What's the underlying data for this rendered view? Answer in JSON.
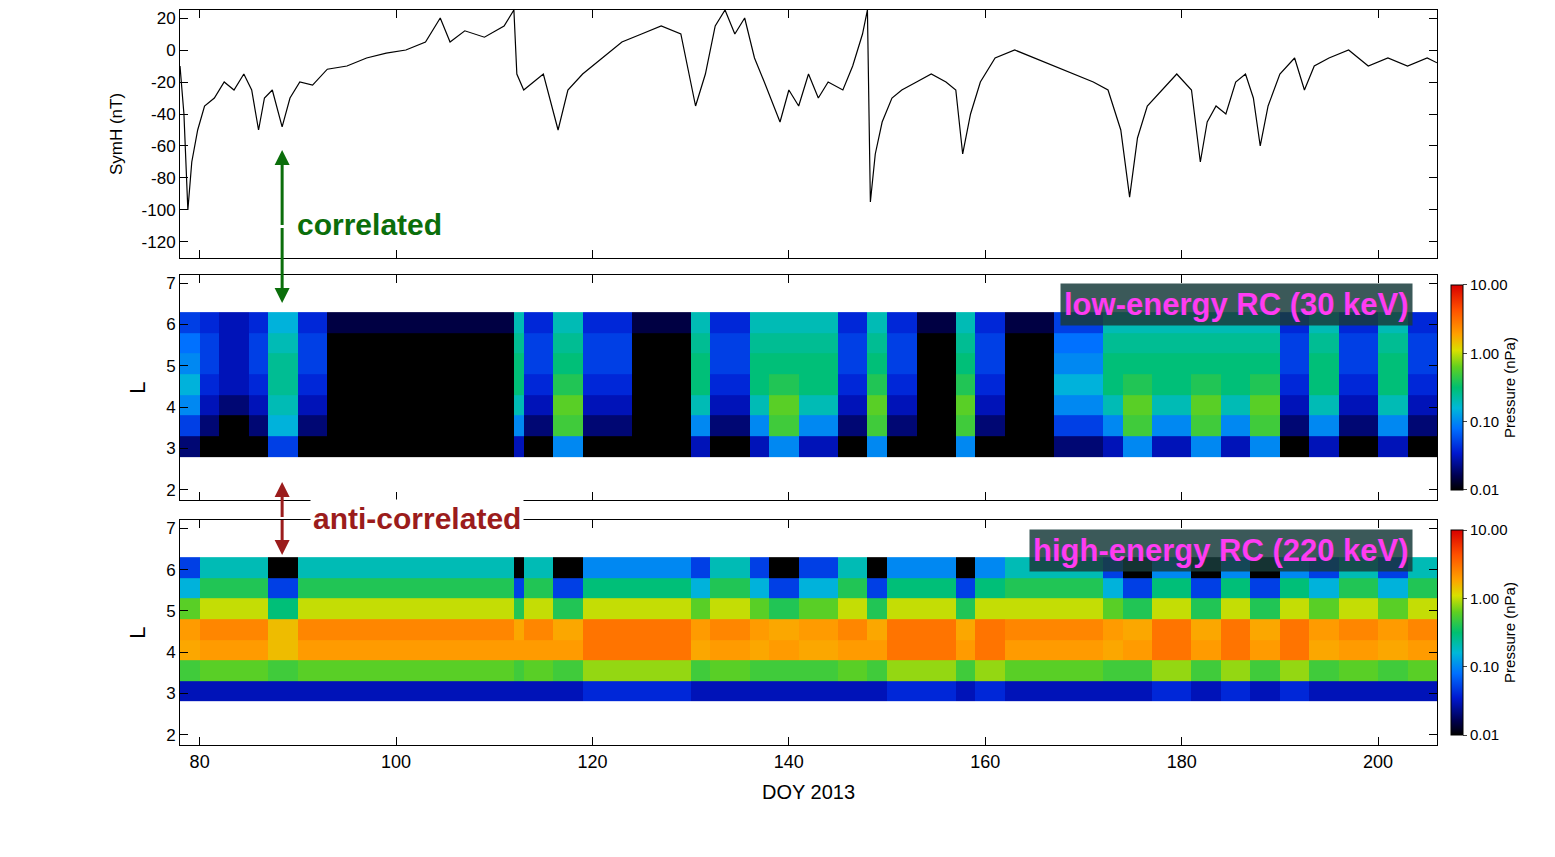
{
  "chart_data": [
    {
      "type": "line",
      "y_label": "SymH (nT)",
      "color": "#000000",
      "xlim": [
        78,
        206
      ],
      "xticks": [
        80,
        100,
        120,
        140,
        160,
        180,
        200
      ],
      "ylim": [
        -130,
        25
      ],
      "yticks": [
        20,
        0,
        -20,
        -40,
        -60,
        -80,
        -100,
        -120
      ],
      "tick_labels": "y",
      "x": [
        78.0,
        78.4,
        78.8,
        79.2,
        79.8,
        80.5,
        81.5,
        82.5,
        83.5,
        84.5,
        85.3,
        86.0,
        86.6,
        87.4,
        88.4,
        89.2,
        90.2,
        91.5,
        93,
        95,
        97,
        99,
        101,
        103,
        104.5,
        105.5,
        107,
        109,
        111,
        112.0,
        112.3,
        113,
        114,
        115,
        116.5,
        117.5,
        119,
        121,
        123,
        125,
        127,
        129,
        130.5,
        131.5,
        132.5,
        133.5,
        134.5,
        135.5,
        136.5,
        137.5,
        139.1,
        140,
        141,
        142,
        143,
        144,
        145.5,
        146.5,
        147.5,
        148.0,
        148.3,
        148.8,
        149.5,
        150.5,
        151.5,
        153,
        154.5,
        156,
        157.0,
        157.7,
        158.5,
        159.5,
        161,
        163,
        165,
        167,
        169,
        171,
        172.5,
        173.8,
        174.7,
        175.5,
        176.5,
        178,
        179.5,
        181,
        181.9,
        182.6,
        183.5,
        184.5,
        185.5,
        186.5,
        187.3,
        188.0,
        188.8,
        190,
        191.5,
        192.5,
        193.5,
        195,
        197,
        199,
        201,
        203,
        205,
        206
      ],
      "values": [
        -10,
        -40,
        -100,
        -70,
        -50,
        -35,
        -30,
        -20,
        -25,
        -15,
        -25,
        -50,
        -30,
        -25,
        -48,
        -30,
        -20,
        -22,
        -12,
        -10,
        -5,
        -2,
        0,
        5,
        20,
        5,
        12,
        8,
        15,
        25,
        -15,
        -25,
        -20,
        -15,
        -50,
        -25,
        -15,
        -5,
        5,
        10,
        15,
        10,
        -35,
        -15,
        15,
        25,
        10,
        20,
        -5,
        -20,
        -45,
        -25,
        -35,
        -15,
        -30,
        -20,
        -25,
        -10,
        10,
        25,
        -95,
        -65,
        -45,
        -30,
        -25,
        -20,
        -15,
        -20,
        -25,
        -65,
        -40,
        -20,
        -5,
        0,
        -5,
        -10,
        -15,
        -20,
        -25,
        -50,
        -92,
        -55,
        -35,
        -25,
        -15,
        -25,
        -70,
        -45,
        -35,
        -40,
        -20,
        -15,
        -30,
        -60,
        -35,
        -15,
        -5,
        -25,
        -10,
        -5,
        0,
        -10,
        -5,
        -10,
        -5,
        -8
      ],
      "annotations": [
        {
          "text": "correlated",
          "x": 88.4,
          "color": "#0b6e0b"
        }
      ]
    },
    {
      "type": "heatmap",
      "label": "low-energy RC (30 keV)",
      "y_label": "L",
      "log": true,
      "xlim": [
        78,
        206
      ],
      "xticks": [
        80,
        100,
        120,
        140,
        160,
        180,
        200
      ],
      "ylim": [
        1.75,
        7.2
      ],
      "yticks": [
        2,
        3,
        4,
        5,
        6,
        7
      ],
      "tick_labels": "y",
      "colorbar": {
        "title": "Pressure (nPa)",
        "range": [
          0.01,
          10
        ],
        "ticks": [
          {
            "value": 10,
            "label": "10.00"
          },
          {
            "value": 1,
            "label": "1.00"
          },
          {
            "value": 0.1,
            "label": "0.10"
          },
          {
            "value": 0.01,
            "label": "0.01"
          }
        ]
      },
      "x": [
        78,
        80,
        82,
        85,
        86,
        87,
        90,
        93,
        100,
        105,
        112,
        113,
        116,
        119,
        124,
        130,
        132,
        136,
        138,
        141,
        145,
        148,
        150,
        153,
        157,
        159,
        162,
        167,
        172,
        174,
        177,
        181,
        184,
        187,
        190,
        193,
        196,
        200,
        203,
        206
      ],
      "y": [
        2.8,
        3.3,
        3.8,
        4.3,
        4.8,
        5.3,
        5.8,
        6.3
      ],
      "pressure": [
        [
          0.02,
          0.05,
          0.1,
          0.15,
          0.1,
          0.08,
          0.05
        ],
        [
          0.01,
          0.02,
          0.03,
          0.04,
          0.05,
          0.05,
          0.04
        ],
        [
          0.01,
          0.01,
          0.02,
          0.03,
          0.03,
          0.03,
          0.03
        ],
        [
          0.01,
          0.02,
          0.03,
          0.04,
          0.05,
          0.05,
          0.04
        ],
        [
          0.01,
          0.02,
          0.03,
          0.04,
          0.05,
          0.05,
          0.04
        ],
        [
          0.05,
          0.15,
          0.2,
          0.25,
          0.25,
          0.2,
          0.15
        ],
        [
          0.01,
          0.02,
          0.03,
          0.04,
          0.05,
          0.05,
          0.04
        ],
        [
          0.01,
          0.01,
          0.01,
          0.01,
          0.01,
          0.01,
          0.015
        ],
        [
          0.01,
          0.01,
          0.01,
          0.01,
          0.01,
          0.01,
          0.015
        ],
        [
          0.01,
          0.01,
          0.01,
          0.01,
          0.01,
          0.01,
          0.015
        ],
        [
          0.03,
          0.1,
          0.2,
          0.3,
          0.3,
          0.25,
          0.2
        ],
        [
          0.01,
          0.02,
          0.03,
          0.04,
          0.05,
          0.05,
          0.04
        ],
        [
          0.1,
          0.5,
          0.6,
          0.4,
          0.3,
          0.25,
          0.2
        ],
        [
          0.01,
          0.02,
          0.03,
          0.04,
          0.05,
          0.05,
          0.04
        ],
        [
          0.01,
          0.01,
          0.01,
          0.01,
          0.01,
          0.01,
          0.015
        ],
        [
          0.03,
          0.1,
          0.2,
          0.3,
          0.3,
          0.25,
          0.2
        ],
        [
          0.01,
          0.02,
          0.03,
          0.04,
          0.05,
          0.05,
          0.04
        ],
        [
          0.03,
          0.1,
          0.2,
          0.3,
          0.3,
          0.25,
          0.2
        ],
        [
          0.1,
          0.5,
          0.6,
          0.4,
          0.3,
          0.25,
          0.2
        ],
        [
          0.03,
          0.1,
          0.2,
          0.3,
          0.3,
          0.25,
          0.2
        ],
        [
          0.01,
          0.02,
          0.03,
          0.04,
          0.05,
          0.05,
          0.04
        ],
        [
          0.1,
          0.5,
          0.6,
          0.4,
          0.3,
          0.25,
          0.2
        ],
        [
          0.01,
          0.02,
          0.03,
          0.04,
          0.05,
          0.05,
          0.04
        ],
        [
          0.01,
          0.01,
          0.01,
          0.01,
          0.01,
          0.01,
          0.015
        ],
        [
          0.1,
          0.5,
          0.6,
          0.4,
          0.3,
          0.25,
          0.2
        ],
        [
          0.01,
          0.02,
          0.03,
          0.04,
          0.05,
          0.05,
          0.04
        ],
        [
          0.01,
          0.01,
          0.01,
          0.01,
          0.01,
          0.01,
          0.015
        ],
        [
          0.02,
          0.05,
          0.1,
          0.15,
          0.1,
          0.08,
          0.05
        ],
        [
          0.03,
          0.1,
          0.2,
          0.3,
          0.3,
          0.25,
          0.2
        ],
        [
          0.1,
          0.5,
          0.6,
          0.4,
          0.3,
          0.25,
          0.2
        ],
        [
          0.03,
          0.1,
          0.2,
          0.3,
          0.3,
          0.25,
          0.2
        ],
        [
          0.1,
          0.5,
          0.6,
          0.4,
          0.3,
          0.25,
          0.2
        ],
        [
          0.03,
          0.1,
          0.2,
          0.3,
          0.3,
          0.25,
          0.2
        ],
        [
          0.1,
          0.5,
          0.6,
          0.4,
          0.3,
          0.25,
          0.2
        ],
        [
          0.01,
          0.02,
          0.03,
          0.04,
          0.05,
          0.05,
          0.04
        ],
        [
          0.03,
          0.1,
          0.2,
          0.3,
          0.3,
          0.25,
          0.2
        ],
        [
          0.01,
          0.02,
          0.03,
          0.04,
          0.05,
          0.05,
          0.04
        ],
        [
          0.03,
          0.1,
          0.2,
          0.3,
          0.3,
          0.25,
          0.2
        ],
        [
          0.01,
          0.02,
          0.03,
          0.04,
          0.05,
          0.05,
          0.04
        ]
      ],
      "annotations": [
        {
          "text": "anti-correlated",
          "x": 88.4,
          "color": "#9b1c1c"
        }
      ]
    },
    {
      "type": "heatmap",
      "label": "high-energy RC (220 keV)",
      "y_label": "L",
      "x_label": "DOY 2013",
      "log": true,
      "xlim": [
        78,
        206
      ],
      "xticks": [
        80,
        100,
        120,
        140,
        160,
        180,
        200
      ],
      "ylim": [
        1.75,
        7.2
      ],
      "yticks": [
        2,
        3,
        4,
        5,
        6,
        7
      ],
      "colorbar": {
        "title": "Pressure (nPa)",
        "range": [
          0.01,
          10
        ],
        "ticks": [
          {
            "value": 10,
            "label": "10.00"
          },
          {
            "value": 1,
            "label": "1.00"
          },
          {
            "value": 0.1,
            "label": "0.10"
          },
          {
            "value": 0.01,
            "label": "0.01"
          }
        ]
      },
      "x": [
        78,
        80,
        82,
        85,
        86,
        87,
        90,
        93,
        100,
        105,
        112,
        113,
        116,
        119,
        124,
        130,
        132,
        136,
        138,
        141,
        145,
        148,
        150,
        153,
        157,
        159,
        162,
        167,
        172,
        174,
        177,
        181,
        184,
        187,
        190,
        193,
        196,
        200,
        203,
        206
      ],
      "y": [
        2.8,
        3.3,
        3.8,
        4.3,
        4.8,
        5.3,
        5.8,
        6.3
      ],
      "pressure": [
        [
          0.03,
          0.5,
          1.8,
          2.0,
          0.6,
          0.15,
          0.05
        ],
        [
          0.03,
          0.6,
          2.0,
          2.5,
          1.0,
          0.4,
          0.2
        ],
        [
          0.03,
          0.6,
          2.0,
          2.5,
          1.0,
          0.4,
          0.2
        ],
        [
          0.03,
          0.6,
          2.0,
          2.5,
          1.0,
          0.4,
          0.2
        ],
        [
          0.03,
          0.6,
          2.0,
          2.5,
          1.0,
          0.4,
          0.2
        ],
        [
          0.03,
          0.5,
          1.5,
          1.5,
          0.3,
          0.05,
          0.01
        ],
        [
          0.03,
          0.6,
          2.0,
          2.5,
          1.0,
          0.4,
          0.2
        ],
        [
          0.03,
          0.6,
          2.0,
          2.5,
          1.0,
          0.4,
          0.2
        ],
        [
          0.03,
          0.6,
          2.0,
          2.5,
          1.0,
          0.4,
          0.2
        ],
        [
          0.03,
          0.6,
          2.0,
          2.5,
          1.0,
          0.4,
          0.2
        ],
        [
          0.03,
          0.5,
          2.0,
          1.8,
          0.4,
          0.05,
          0.01
        ],
        [
          0.03,
          0.6,
          2.0,
          2.5,
          1.0,
          0.4,
          0.2
        ],
        [
          0.03,
          0.5,
          2.0,
          1.8,
          0.4,
          0.05,
          0.01
        ],
        [
          0.04,
          0.8,
          3.0,
          3.0,
          1.0,
          0.3,
          0.1
        ],
        [
          0.04,
          0.8,
          3.0,
          3.0,
          1.0,
          0.3,
          0.1
        ],
        [
          0.03,
          0.5,
          1.8,
          2.0,
          0.6,
          0.15,
          0.05
        ],
        [
          0.03,
          0.6,
          2.0,
          2.5,
          1.0,
          0.4,
          0.2
        ],
        [
          0.03,
          0.5,
          1.8,
          2.0,
          0.6,
          0.15,
          0.05
        ],
        [
          0.03,
          0.5,
          2.0,
          1.8,
          0.4,
          0.05,
          0.01
        ],
        [
          0.03,
          0.5,
          1.8,
          2.0,
          0.6,
          0.15,
          0.05
        ],
        [
          0.03,
          0.6,
          2.0,
          2.5,
          1.0,
          0.4,
          0.2
        ],
        [
          0.03,
          0.5,
          2.0,
          1.8,
          0.4,
          0.05,
          0.01
        ],
        [
          0.04,
          0.8,
          3.0,
          3.0,
          1.0,
          0.3,
          0.1
        ],
        [
          0.04,
          0.8,
          3.0,
          3.0,
          1.0,
          0.3,
          0.1
        ],
        [
          0.03,
          0.5,
          2.0,
          1.8,
          0.4,
          0.05,
          0.01
        ],
        [
          0.04,
          0.8,
          3.0,
          3.0,
          1.0,
          0.3,
          0.1
        ],
        [
          0.03,
          0.6,
          2.0,
          2.5,
          1.0,
          0.4,
          0.2
        ],
        [
          0.03,
          0.6,
          2.0,
          2.5,
          1.0,
          0.4,
          0.2
        ],
        [
          0.03,
          0.5,
          1.8,
          2.0,
          0.6,
          0.15,
          0.05
        ],
        [
          0.03,
          0.5,
          2.0,
          1.8,
          0.4,
          0.05,
          0.01
        ],
        [
          0.04,
          0.8,
          3.0,
          3.0,
          1.0,
          0.3,
          0.1
        ],
        [
          0.03,
          0.5,
          2.0,
          1.8,
          0.4,
          0.05,
          0.01
        ],
        [
          0.04,
          0.8,
          3.0,
          3.0,
          1.0,
          0.3,
          0.1
        ],
        [
          0.03,
          0.5,
          2.0,
          1.8,
          0.4,
          0.05,
          0.01
        ],
        [
          0.04,
          0.8,
          3.0,
          3.0,
          1.0,
          0.3,
          0.1
        ],
        [
          0.03,
          0.5,
          1.8,
          2.0,
          0.6,
          0.15,
          0.05
        ],
        [
          0.03,
          0.6,
          2.0,
          2.5,
          1.0,
          0.4,
          0.2
        ],
        [
          0.03,
          0.5,
          1.8,
          2.0,
          0.6,
          0.15,
          0.05
        ],
        [
          0.03,
          0.6,
          2.0,
          2.5,
          1.0,
          0.4,
          0.2
        ]
      ]
    }
  ]
}
